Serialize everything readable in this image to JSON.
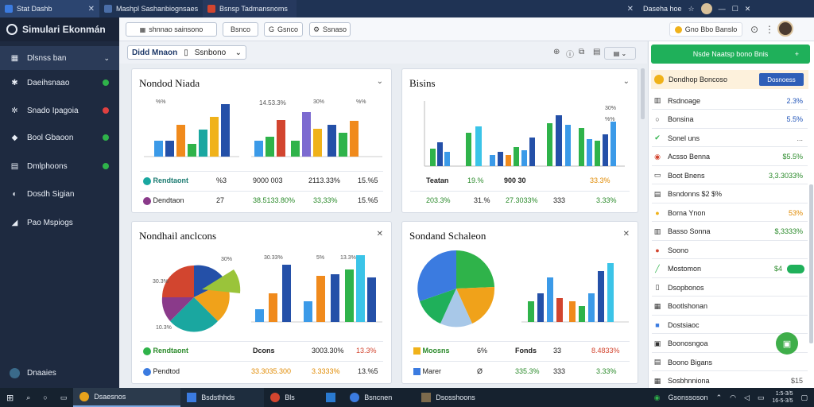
{
  "browser_tabs": [
    {
      "label": "Stat Dashb",
      "color": "#3b7be0"
    },
    {
      "label": "Mashpl Sashanbiognsaes",
      "color": "#4a6ea8"
    },
    {
      "label": "Bsnsp Tadmansnoms",
      "color": "#d2452f"
    },
    {
      "label": "",
      "color": "#1f3354"
    },
    {
      "label": "Daseha hoe",
      "color": "#1f3354"
    }
  ],
  "app": {
    "title": "Simulari Ekonmán"
  },
  "toolbar": {
    "btn1": "shnnao sainsono",
    "btn2": "Bsnco",
    "btn3": "Gsnco",
    "btn4": "Ssnaso",
    "promo": "Gno Bbo Banslo"
  },
  "filter": {
    "label": "Didd Mnaon",
    "select": "Ssnbono"
  },
  "sidebar": {
    "items": [
      {
        "label": "Dlsnss ban",
        "icon": "grid-icon",
        "dot": ""
      },
      {
        "label": "Daeihsnaao",
        "icon": "puzzle-icon",
        "dot": "#2fb34a"
      },
      {
        "label": "Snado Ipagoia",
        "icon": "gear-icon",
        "dot": "#e04040"
      },
      {
        "label": "Bool Gbaoon",
        "icon": "car-icon",
        "dot": "#2fb34a"
      },
      {
        "label": "Dmlphoons",
        "icon": "document-icon",
        "dot": "#2fb34a"
      },
      {
        "label": "Dosdh Sigian",
        "icon": "globe-icon",
        "dot": ""
      },
      {
        "label": "Pao Mspiogs",
        "icon": "megaphone-icon",
        "dot": ""
      }
    ],
    "footer": "Dnaaies"
  },
  "cards": {
    "c1": {
      "title": "Nondod Niada",
      "bar_labels": [
        "%%",
        "14.53.3%",
        "30%",
        "%%"
      ],
      "rows": [
        {
          "name": "Rendtaont",
          "icon_color": "#1aa7a0",
          "c2": "%3",
          "c3": "9000 003",
          "c4": "2113.33%",
          "c5": "15.%5"
        },
        {
          "name": "Dendtaon",
          "icon_color": "#8a3a8a",
          "c2": "27",
          "c3": "38.5133.80%",
          "c4": "33,33%",
          "c5": "15.%5"
        }
      ]
    },
    "c2": {
      "title": "Bisins",
      "bar_labels": [
        "30%",
        "%%"
      ],
      "rows": [
        {
          "name": "Teatan",
          "c2": "19.%",
          "c3": "900 30",
          "c4": "33.3%"
        },
        {
          "name": "203.3%",
          "c2": "31.%",
          "c3": "27.3033%",
          "c4": "333",
          "c5": "3.33%"
        }
      ]
    },
    "c3": {
      "title": "Nondhail anclcons",
      "pie_labels": [
        "30.3%",
        "30%",
        "10.3%"
      ],
      "bar_labels": [
        "30.33%",
        "5%",
        "13.3%"
      ],
      "rows": [
        {
          "name": "Rendtaont",
          "icon_color": "#2fb34a",
          "c2": "Dcons",
          "c3": "3003.30%",
          "c4": "13.3%"
        },
        {
          "name": "Pendtod",
          "icon_color": "#3b7be0",
          "c2": "33.3035.300",
          "c3": "3.3333%",
          "c4": "13.%5"
        }
      ]
    },
    "c4": {
      "title": "Sondand Schaleon",
      "rows": [
        {
          "name": "Moosns",
          "c2": "6%",
          "c3": "Fonds",
          "c4": "33",
          "c5": "8.4833%"
        },
        {
          "name": "Marer",
          "c2": "Ø",
          "c3": "335.3%",
          "c4": "333",
          "c5": "3.33%"
        }
      ]
    }
  },
  "rpanel": {
    "header": "Nsde Naatsp bono Bnis",
    "item_head": {
      "label": "Dondhop Boncoso",
      "button": "Dosnoess"
    },
    "rows": [
      {
        "label": "Rsdnoage",
        "value": "2.3%",
        "value_color": "#1f53b8",
        "icon": "chart-icon"
      },
      {
        "label": "Bonsina",
        "value": "5.5%",
        "value_color": "#1f53b8",
        "icon": "circle-icon"
      },
      {
        "label": "Sonel uns",
        "value": "...",
        "value_color": "#555",
        "icon": "check-icon"
      },
      {
        "label": "Acsso Benna",
        "value": "$5.5%",
        "value_color": "#2a8a2a",
        "icon": "chrome-icon"
      },
      {
        "label": "Boot Bnens",
        "value": "3,3.3033%",
        "value_color": "#2a8a2a",
        "icon": "card-icon"
      },
      {
        "label": "Bsndonns $2 $%",
        "value": "",
        "value_color": "#222",
        "icon": "list-icon"
      },
      {
        "label": "Borna Ynon",
        "value": "53%",
        "value_color": "#e08a00",
        "icon": "star-icon"
      },
      {
        "label": "Basso Sonna",
        "value": "$,3333%",
        "value_color": "#2a8a2a",
        "icon": "bars-icon"
      },
      {
        "label": "Soono",
        "value": "",
        "value_color": "#222",
        "icon": "red-icon"
      },
      {
        "label": "Mostomon",
        "value": "$4",
        "value_color": "#2a8a2a",
        "icon": "slash-icon"
      },
      {
        "label": "Dsopbonos",
        "value": "",
        "value_color": "#222",
        "icon": "doc-icon"
      },
      {
        "label": "Bootlshonan",
        "value": "",
        "value_color": "#222",
        "icon": "grid2-icon"
      },
      {
        "label": "Dostsiaoc",
        "value": "",
        "value_color": "#222",
        "icon": "blue-icon"
      },
      {
        "label": "Boonosngoa",
        "value": "",
        "value_color": "#222",
        "icon": "box-icon"
      },
      {
        "label": "Boono Bigans",
        "value": "",
        "value_color": "#222",
        "icon": "table-icon"
      },
      {
        "label": "Sosbhnniona",
        "value": "$15",
        "value_color": "#555",
        "icon": "table2-icon"
      }
    ]
  },
  "taskbar": {
    "items": [
      {
        "label": "Dsaesnos",
        "color": "#e8a21c"
      },
      {
        "label": "Bsdsthhds",
        "color": "#3b7be0"
      },
      {
        "label": "Bls",
        "color": "#d2452f"
      },
      {
        "label": "",
        "color": "#2a7ad0"
      },
      {
        "label": "Bsncnen",
        "color": "#3b7be0"
      },
      {
        "label": "Dsosshoons",
        "color": "#7c6a4c"
      }
    ],
    "tray_text": "Gsonssoson",
    "clock_time": "1:5-3/5",
    "clock_date": "16-5-3/5"
  },
  "colors": {
    "accent_green": "#1fb05a",
    "sidebar_bg": "#1e2a40",
    "taskbar_bg": "#16222f"
  }
}
